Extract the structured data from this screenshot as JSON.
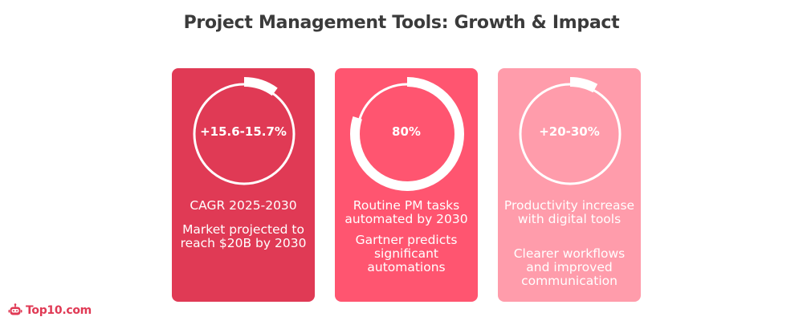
{
  "title": "Project Management Tools: Growth & Impact",
  "colors": {
    "card1": "#e03a55",
    "card2": "#ff5570",
    "card3": "#ff9cab",
    "ring": "#ffffff",
    "brand": "#e03a55"
  },
  "cards": [
    {
      "value": "+15.6-15.7%",
      "label": "CAGR 2025-2030",
      "description": "Market projected to reach $20B by 2030",
      "ring_fraction": 0.1
    },
    {
      "value": "80%",
      "label": "Routine PM tasks automated by 2030",
      "description": "Gartner predicts significant automations",
      "ring_fraction": 0.8
    },
    {
      "value": "+20-30%",
      "label": "Productivity increase with digital tools",
      "description": "Clearer workflows and improved communication",
      "ring_fraction": 0.08
    }
  ],
  "logo": {
    "icon": "robot-icon",
    "text": "Top10.com"
  }
}
